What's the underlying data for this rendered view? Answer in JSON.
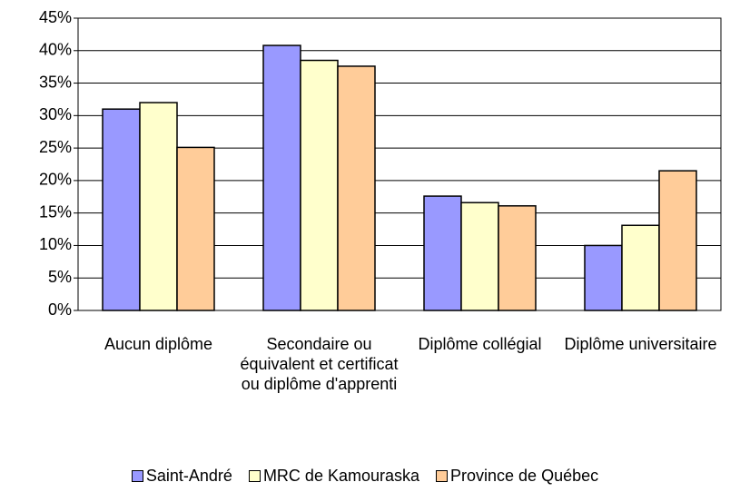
{
  "chart_data": {
    "type": "bar",
    "categories": [
      "Aucun diplôme",
      "Secondaire ou équivalent et certificat ou diplôme d'apprenti",
      "Diplôme collégial",
      "Diplôme universitaire"
    ],
    "series": [
      {
        "name": "Saint-André",
        "color": "#9999ff",
        "values": [
          31,
          40.8,
          17.6,
          10
        ]
      },
      {
        "name": "MRC de Kamouraska",
        "color": "#ffffcc",
        "values": [
          32,
          38.5,
          16.6,
          13.1
        ]
      },
      {
        "name": "Province de Québec",
        "color": "#ffcc99",
        "values": [
          25.1,
          37.6,
          16.1,
          21.5
        ]
      }
    ],
    "ylim": [
      0,
      45
    ],
    "yticks": [
      {
        "value": 0,
        "label": "0%"
      },
      {
        "value": 5,
        "label": "5%"
      },
      {
        "value": 10,
        "label": "10%"
      },
      {
        "value": 15,
        "label": "15%"
      },
      {
        "value": 20,
        "label": "20%"
      },
      {
        "value": 25,
        "label": "25%"
      },
      {
        "value": 30,
        "label": "30%"
      },
      {
        "value": 35,
        "label": "35%"
      },
      {
        "value": 40,
        "label": "40%"
      },
      {
        "value": 45,
        "label": "45%"
      }
    ],
    "grid": true,
    "legend": "bottom"
  }
}
